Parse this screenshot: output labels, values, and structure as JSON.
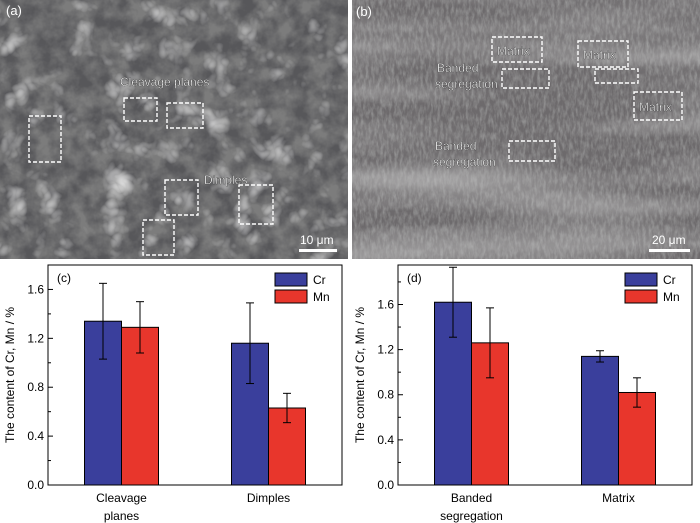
{
  "panels": {
    "a": {
      "label": "(a)",
      "annotations": [
        "Cleavage planes",
        "Dimples"
      ],
      "scale_bar": "10 μm"
    },
    "b": {
      "label": "(b)",
      "annotations": [
        "Matrix",
        "Matrix",
        "Matrix",
        "Banded\nsegregation",
        "Banded\nsegregation"
      ],
      "scale_bar": "20 μm"
    }
  },
  "colors": {
    "Cr": "#3a3f9c",
    "Mn": "#e8362c"
  },
  "chart_data": [
    {
      "type": "bar",
      "panel_label": "(c)",
      "categories": [
        "Cleavage\nplanes",
        "Dimples"
      ],
      "series": [
        {
          "name": "Cr",
          "values": [
            1.34,
            1.16
          ],
          "errors": [
            0.31,
            0.33
          ]
        },
        {
          "name": "Mn",
          "values": [
            1.29,
            0.63
          ],
          "errors": [
            0.21,
            0.12
          ]
        }
      ],
      "ylabel": "The content of Cr, Mn / %",
      "ylim": [
        0,
        1.8
      ],
      "yticks": [
        "0.0",
        "0.4",
        "0.8",
        "1.2",
        "1.6"
      ],
      "legend": "top-right"
    },
    {
      "type": "bar",
      "panel_label": "(d)",
      "categories": [
        "Banded\nsegregation",
        "Matrix"
      ],
      "series": [
        {
          "name": "Cr",
          "values": [
            1.62,
            1.14
          ],
          "errors": [
            0.31,
            0.05
          ]
        },
        {
          "name": "Mn",
          "values": [
            1.26,
            0.82
          ],
          "errors": [
            0.31,
            0.13
          ]
        }
      ],
      "ylabel": "The content of Cr, Mn / %",
      "ylim": [
        0,
        1.95
      ],
      "yticks": [
        "0.0",
        "0.4",
        "0.8",
        "1.2",
        "1.6"
      ],
      "legend": "top-right"
    }
  ]
}
